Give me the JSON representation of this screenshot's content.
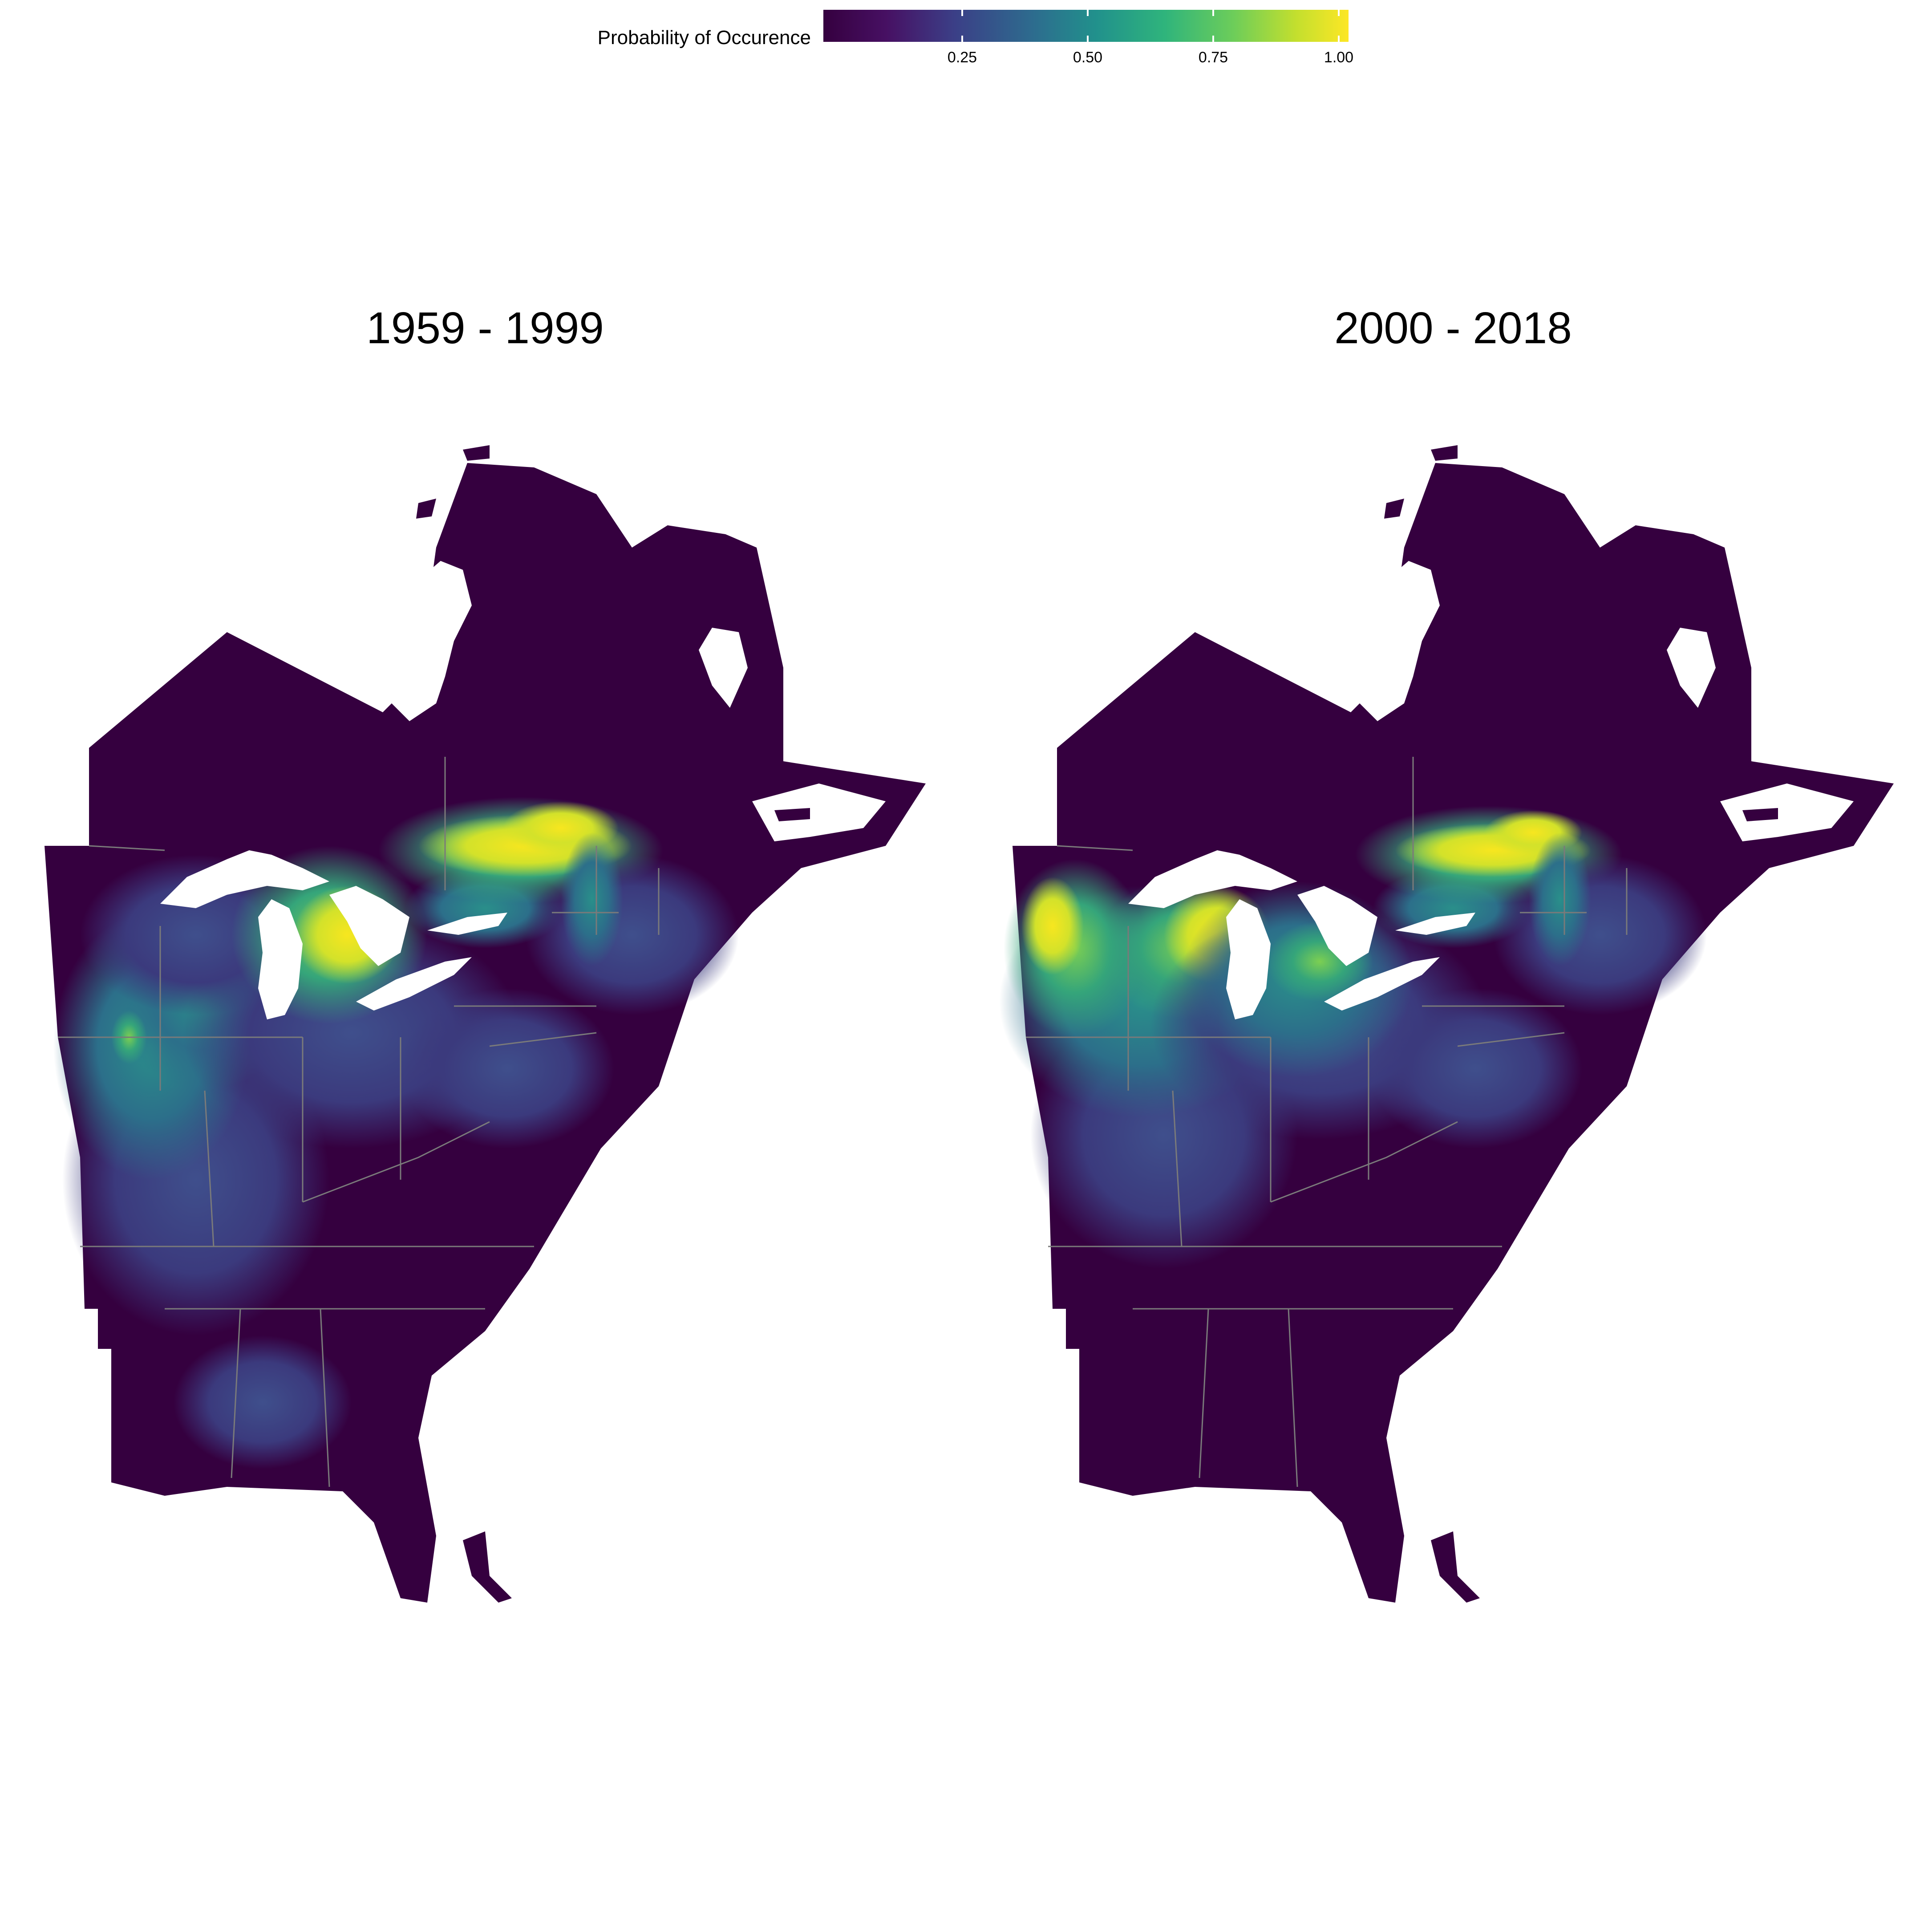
{
  "legend": {
    "title": "Probability of Occurence",
    "ticks": [
      "0.25",
      "0.50",
      "0.75",
      "1.00"
    ],
    "tick_values": [
      0.25,
      0.5,
      0.75,
      1.0
    ],
    "colormap": "viridis",
    "colors": [
      "#440154",
      "#3b528b",
      "#21918c",
      "#5ec962",
      "#fde725"
    ]
  },
  "panels": [
    {
      "title": "1959 - 1999",
      "hotspots": "southern Ontario / St. Lawrence corridor; lower Michigan"
    },
    {
      "title": "2000 - 2018",
      "hotspots": "southern Ontario / St. Lawrence corridor; lower Michigan; Minnesota"
    }
  ],
  "colors": {
    "background_land": "#35003f",
    "water": "#ffffff",
    "borders": "#7a7a7a"
  }
}
